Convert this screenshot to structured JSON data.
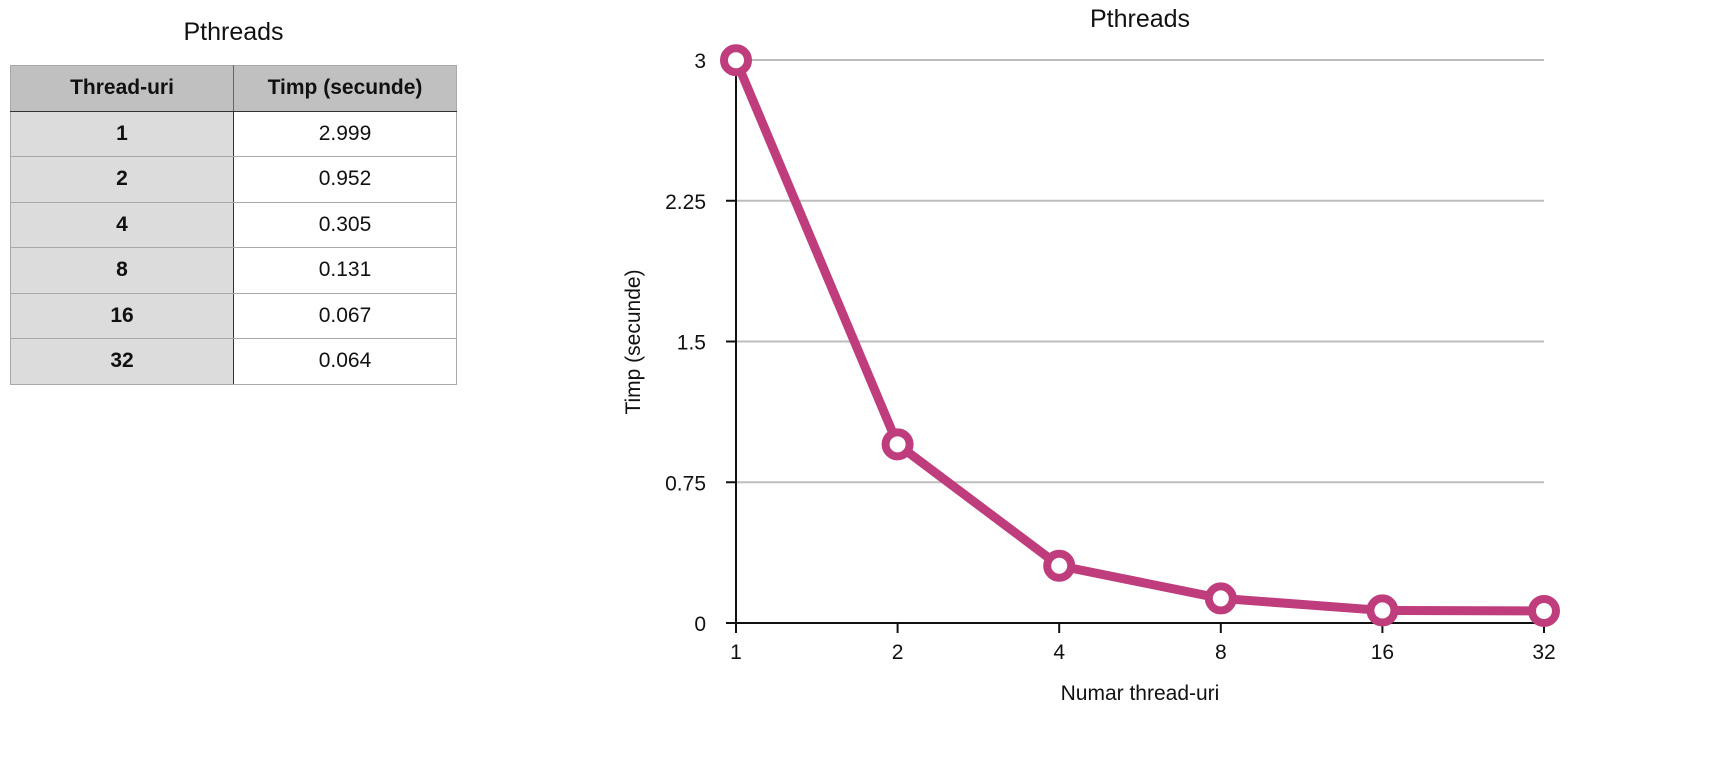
{
  "table": {
    "title": "Pthreads",
    "headers": [
      "Thread-uri",
      "Timp (secunde)"
    ],
    "rows": [
      [
        "1",
        "2.999"
      ],
      [
        "2",
        "0.952"
      ],
      [
        "4",
        "0.305"
      ],
      [
        "8",
        "0.131"
      ],
      [
        "16",
        "0.067"
      ],
      [
        "32",
        "0.064"
      ]
    ]
  },
  "chart_data": {
    "type": "line",
    "title": "Pthreads",
    "xlabel": "Numar thread-uri",
    "ylabel": "Timp (secunde)",
    "categories": [
      "1",
      "2",
      "4",
      "8",
      "16",
      "32"
    ],
    "values": [
      2.999,
      0.952,
      0.305,
      0.131,
      0.067,
      0.064
    ],
    "ylim": [
      0,
      3
    ],
    "yticks": [
      "0",
      "0.75",
      "1.5",
      "2.25",
      "3"
    ],
    "grid": true,
    "legend": "none",
    "colors": {
      "line": "#bf3d7d",
      "grid": "#bdbdbd",
      "axis": "#111111"
    }
  }
}
